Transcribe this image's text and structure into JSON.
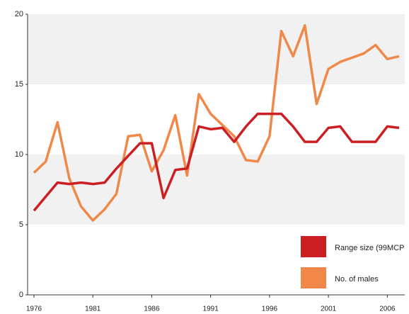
{
  "chart_data": {
    "type": "line",
    "x": [
      1976,
      1977,
      1978,
      1979,
      1980,
      1981,
      1982,
      1983,
      1984,
      1985,
      1986,
      1987,
      1988,
      1989,
      1990,
      1991,
      1992,
      1993,
      1994,
      1995,
      1996,
      1997,
      1998,
      1999,
      2000,
      2001,
      2002,
      2003,
      2004,
      2005,
      2006,
      2007
    ],
    "series": [
      {
        "name": "Range size (99MCP",
        "color": "#cc1f24",
        "values": [
          6,
          7,
          8,
          7.9,
          8,
          7.9,
          8,
          9,
          9.9,
          10.8,
          10.8,
          6.9,
          8.9,
          9,
          12,
          11.8,
          11.9,
          10.9,
          12,
          12.9,
          12.9,
          12.9,
          12,
          10.9,
          10.9,
          11.9,
          12,
          10.9,
          10.9,
          10.9,
          12,
          11.9
        ]
      },
      {
        "name": "No. of males",
        "color": "#f0884a",
        "values": [
          8.7,
          9.5,
          12.3,
          8.3,
          6.3,
          5.3,
          6.1,
          7.2,
          11.3,
          11.4,
          8.8,
          10.3,
          12.8,
          8.5,
          14.3,
          12.9,
          12.1,
          11.3,
          9.6,
          9.5,
          11.3,
          18.8,
          17,
          19.2,
          13.6,
          16.1,
          16.6,
          16.9,
          17.2,
          17.8,
          16.8,
          17
        ]
      }
    ],
    "xlim": [
      1976,
      2007
    ],
    "xticks": [
      1976,
      1981,
      1986,
      1991,
      1996,
      2001,
      2006
    ],
    "ylim": [
      0,
      20
    ],
    "yticks": [
      0,
      5,
      10,
      15,
      20
    ],
    "grid_bands": true,
    "legend": "lower right"
  }
}
